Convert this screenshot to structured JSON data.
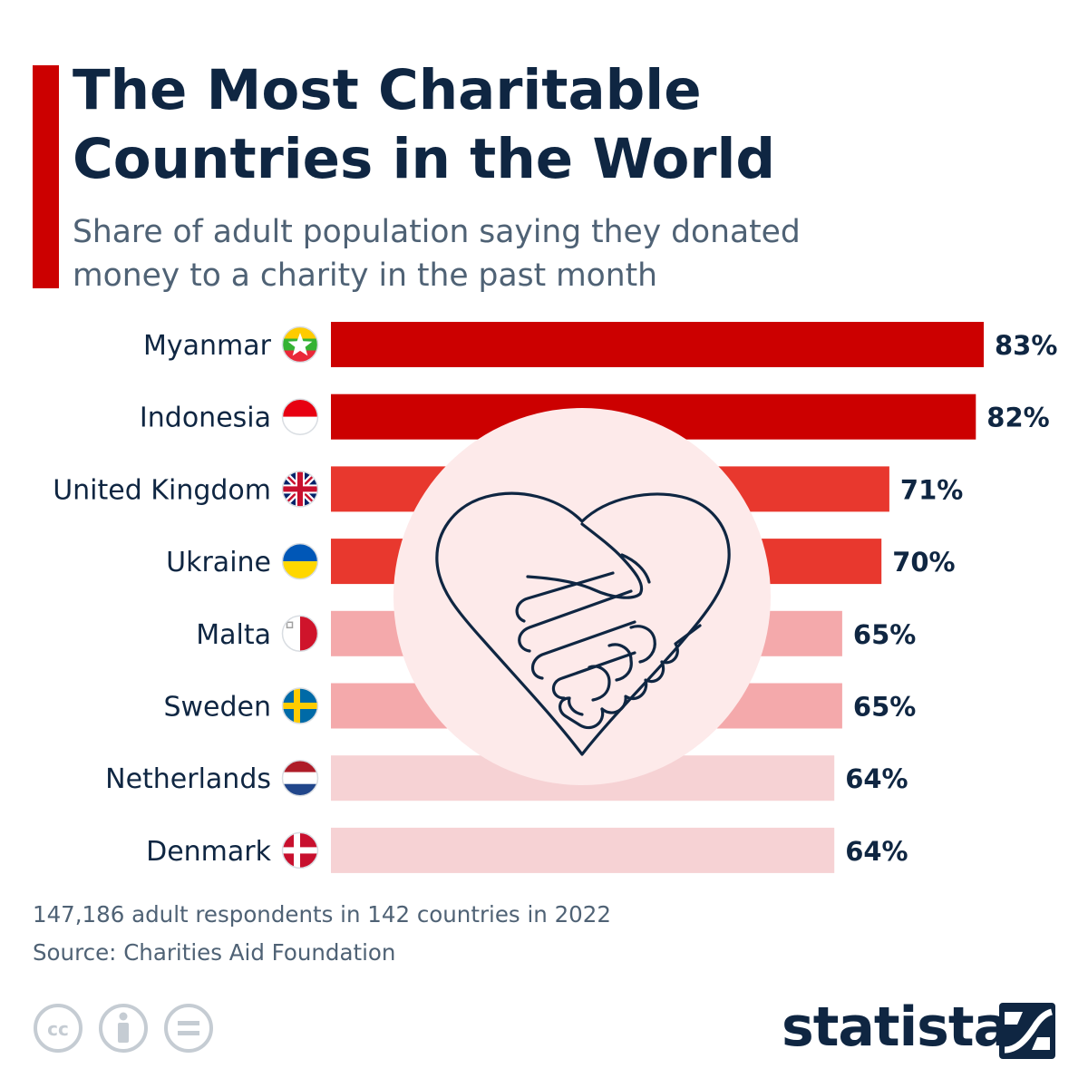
{
  "header": {
    "title_line1": "The Most Charitable",
    "title_line2": "Countries in the World",
    "subtitle_line1": "Share of adult population saying they donated",
    "subtitle_line2": "money to a charity in the past month"
  },
  "chart_data": {
    "type": "bar",
    "orientation": "horizontal",
    "categories": [
      "Myanmar",
      "Indonesia",
      "United Kingdom",
      "Ukraine",
      "Malta",
      "Sweden",
      "Netherlands",
      "Denmark"
    ],
    "values": [
      83,
      82,
      71,
      70,
      65,
      65,
      64,
      64
    ],
    "value_labels": [
      "83%",
      "82%",
      "71%",
      "70%",
      "65%",
      "65%",
      "64%",
      "64%"
    ],
    "unit": "%",
    "xlim": [
      0,
      100
    ],
    "grid": false,
    "legend": "none",
    "bar_colors": [
      "#cc0000",
      "#cc0000",
      "#e8382e",
      "#e8382e",
      "#f4a9ab",
      "#f4a9ab",
      "#f6d2d4",
      "#f6d2d4"
    ],
    "flag_icons": [
      "myanmar-flag-icon",
      "indonesia-flag-icon",
      "united-kingdom-flag-icon",
      "ukraine-flag-icon",
      "malta-flag-icon",
      "sweden-flag-icon",
      "netherlands-flag-icon",
      "denmark-flag-icon"
    ]
  },
  "footer": {
    "note": "147,186 adult respondents in 142 countries in 2022",
    "source": "Source: Charities Aid Foundation",
    "brand": "statista",
    "license_icons": [
      "cc-icon",
      "attribution-icon",
      "no-derivatives-icon"
    ]
  },
  "colors": {
    "title": "#0f2642",
    "subtitle": "#4f6275",
    "accent": "#cc0000",
    "illustration_circle": "#fdeaea"
  }
}
